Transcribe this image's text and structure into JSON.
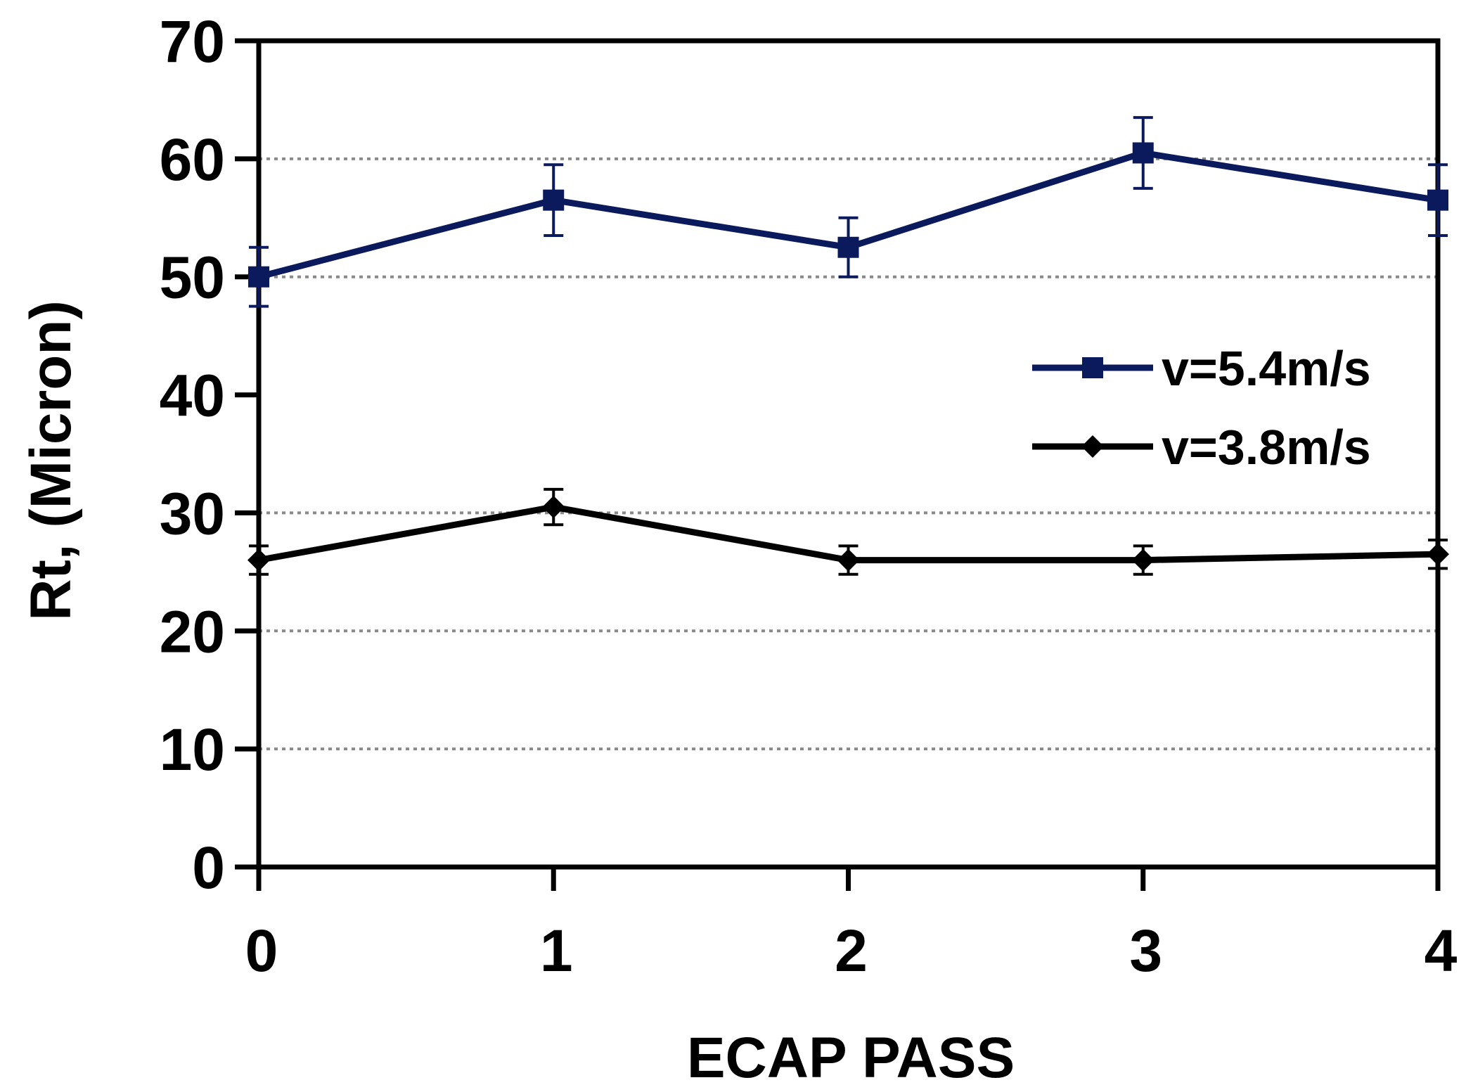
{
  "chart_data": {
    "type": "line",
    "title": "",
    "xlabel": "ECAP PASS",
    "ylabel": "Rt, (Micron)",
    "x": [
      0,
      1,
      2,
      3,
      4
    ],
    "x_tick_labels": [
      "0",
      "1",
      "2",
      "3",
      "4"
    ],
    "xlim": [
      0,
      4
    ],
    "ylim": [
      0,
      70
    ],
    "y_ticks": [
      0,
      10,
      20,
      30,
      40,
      50,
      60,
      70
    ],
    "y_tick_labels": [
      "0",
      "10",
      "20",
      "30",
      "40",
      "50",
      "60",
      "70"
    ],
    "gridlines": "horizontal-dotted",
    "grid_values": [
      10,
      20,
      30,
      50,
      60
    ],
    "legend_position": "right-middle",
    "series": [
      {
        "name": "v=5.4m/s",
        "color": "#0a1a5c",
        "marker": "square",
        "values": [
          50,
          56.5,
          52.5,
          60.5,
          56.5
        ],
        "error": [
          2.5,
          3,
          2.5,
          3,
          3
        ]
      },
      {
        "name": "v=3.8m/s",
        "color": "#000000",
        "marker": "diamond",
        "values": [
          26,
          30.5,
          26,
          26,
          26.5
        ],
        "error": [
          1.2,
          1.5,
          1.2,
          1.2,
          1.2
        ]
      }
    ]
  }
}
